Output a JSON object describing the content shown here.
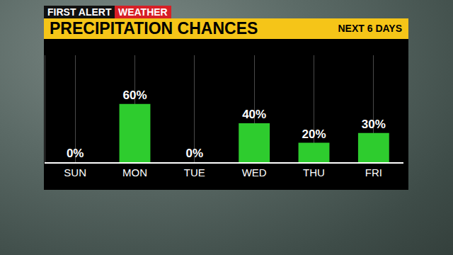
{
  "chart_data": {
    "type": "bar",
    "title": "PRECIPITATION CHANCES",
    "subtitle": "NEXT 6 DAYS",
    "annotations": [
      "FIRST ALERT",
      "WEATHER"
    ],
    "categories": [
      "SUN",
      "MON",
      "TUE",
      "WED",
      "THU",
      "FRI"
    ],
    "values": [
      0,
      60,
      0,
      40,
      20,
      30
    ],
    "value_labels": [
      "0%",
      "60%",
      "0%",
      "40%",
      "20%",
      "30%"
    ],
    "color": "#2ecc2e",
    "ylim": [
      0,
      110
    ],
    "yticks": [],
    "grid": true,
    "data_labels": true,
    "tick_labels": "x"
  }
}
